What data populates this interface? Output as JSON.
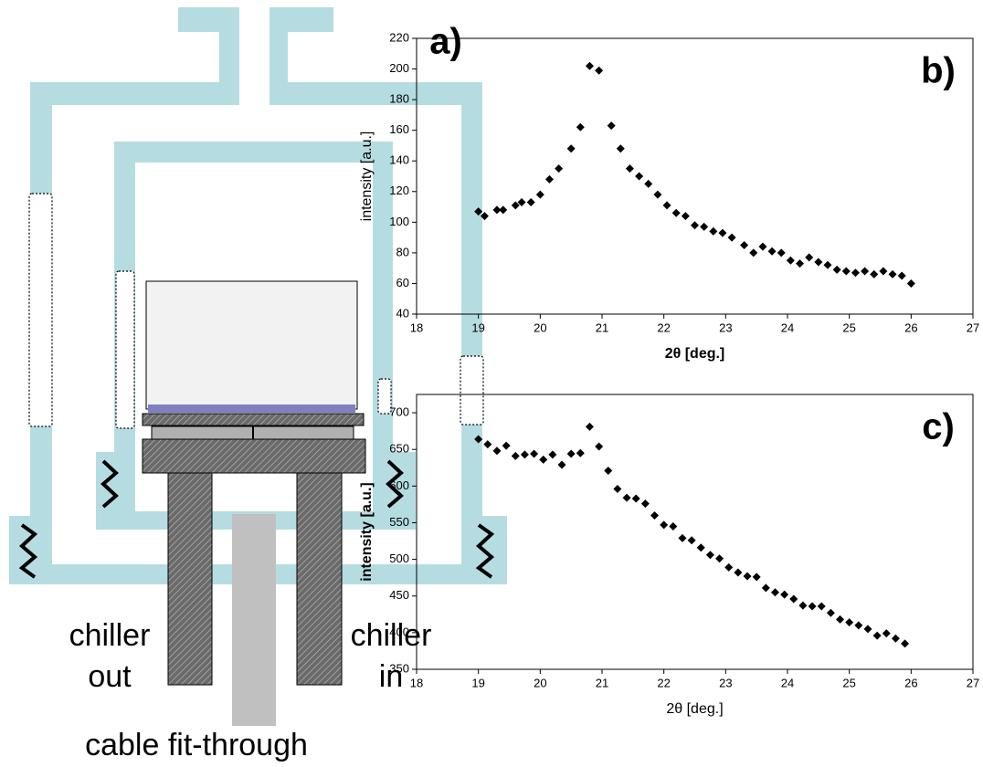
{
  "diagram": {
    "panel_label": "a)",
    "chiller_out": [
      "chiller",
      "out"
    ],
    "chiller_in": [
      "chiller",
      "in"
    ],
    "cable": "cable fit-through"
  },
  "chart_data": [
    {
      "type": "scatter",
      "annotation": "b)",
      "x_label": "2θ [deg.]",
      "y_label": "intensity [a.u.]",
      "color": "#000000",
      "xlim": [
        18,
        27
      ],
      "ylim": [
        40,
        220
      ],
      "xticks": [
        18,
        19,
        20,
        21,
        22,
        23,
        24,
        25,
        26,
        27
      ],
      "yticks": [
        40,
        60,
        80,
        100,
        120,
        140,
        160,
        180,
        200,
        220
      ],
      "x": [
        19.0,
        19.1,
        19.3,
        19.4,
        19.6,
        19.7,
        19.85,
        20.0,
        20.15,
        20.3,
        20.5,
        20.65,
        20.8,
        20.95,
        21.15,
        21.3,
        21.45,
        21.6,
        21.75,
        21.9,
        22.05,
        22.2,
        22.35,
        22.5,
        22.65,
        22.8,
        22.95,
        23.1,
        23.3,
        23.45,
        23.6,
        23.75,
        23.9,
        24.05,
        24.2,
        24.35,
        24.5,
        24.65,
        24.8,
        24.95,
        25.1,
        25.25,
        25.4,
        25.55,
        25.7,
        25.85,
        26.0
      ],
      "values": [
        107,
        104,
        108,
        108,
        111,
        113,
        113,
        118,
        128,
        135,
        148,
        162,
        202,
        199,
        163,
        148,
        135,
        130,
        125,
        118,
        111,
        106,
        104,
        98,
        97,
        94,
        93,
        90,
        85,
        80,
        84,
        81,
        80,
        75,
        73,
        77,
        74,
        72,
        69,
        68,
        67,
        68,
        66,
        68,
        66,
        65,
        60
      ]
    },
    {
      "type": "scatter",
      "annotation": "c)",
      "x_label": "2θ [deg.]",
      "y_label": "intensity [a.u.]",
      "color": "#000000",
      "xlim": [
        18,
        27
      ],
      "ylim": [
        350,
        725
      ],
      "xticks": [
        18,
        19,
        20,
        21,
        22,
        23,
        24,
        25,
        26,
        27
      ],
      "yticks": [
        350,
        400,
        450,
        500,
        550,
        600,
        650,
        700
      ],
      "x": [
        19.0,
        19.15,
        19.3,
        19.45,
        19.6,
        19.75,
        19.9,
        20.05,
        20.2,
        20.35,
        20.5,
        20.65,
        20.8,
        20.95,
        21.1,
        21.25,
        21.4,
        21.55,
        21.7,
        21.85,
        22.0,
        22.15,
        22.3,
        22.45,
        22.6,
        22.75,
        22.9,
        23.05,
        23.2,
        23.35,
        23.5,
        23.65,
        23.8,
        23.95,
        24.1,
        24.25,
        24.4,
        24.55,
        24.7,
        24.85,
        25.0,
        25.15,
        25.3,
        25.45,
        25.6,
        25.75,
        25.9
      ],
      "values": [
        664,
        657,
        648,
        655,
        641,
        643,
        644,
        636,
        643,
        629,
        644,
        645,
        681,
        654,
        621,
        596,
        584,
        583,
        576,
        560,
        547,
        545,
        529,
        526,
        516,
        506,
        501,
        489,
        482,
        477,
        476,
        461,
        455,
        452,
        446,
        437,
        436,
        436,
        427,
        418,
        414,
        410,
        405,
        396,
        399,
        392,
        385
      ]
    }
  ]
}
